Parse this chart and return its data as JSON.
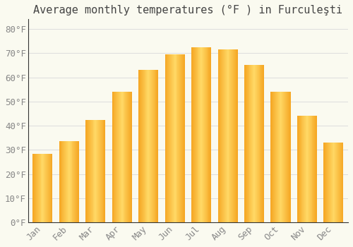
{
  "title": "Average monthly temperatures (°F ) in Furculeşti",
  "months": [
    "Jan",
    "Feb",
    "Mar",
    "Apr",
    "May",
    "Jun",
    "Jul",
    "Aug",
    "Sep",
    "Oct",
    "Nov",
    "Dec"
  ],
  "values": [
    28.5,
    33.5,
    42.5,
    54.0,
    63.0,
    69.5,
    72.5,
    71.5,
    65.0,
    54.0,
    44.0,
    33.0
  ],
  "bar_color_center": "#FFD966",
  "bar_color_edge": "#F5A623",
  "background_color": "#FAFAF0",
  "grid_color": "#DDDDDD",
  "ylim": [
    0,
    84
  ],
  "yticks": [
    0,
    10,
    20,
    30,
    40,
    50,
    60,
    70,
    80
  ],
  "title_fontsize": 11,
  "tick_fontsize": 9,
  "axis_color": "#888888",
  "spine_color": "#333333"
}
